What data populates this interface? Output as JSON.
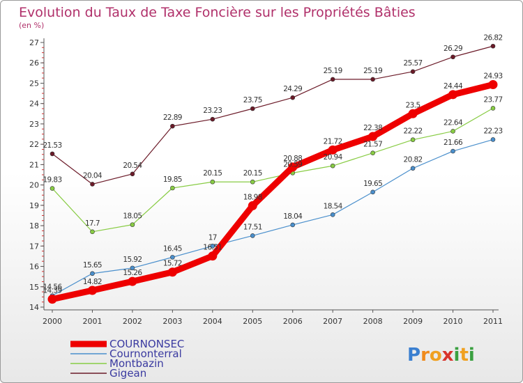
{
  "chart_data": {
    "type": "line",
    "title": "Evolution du Taux de Taxe Foncière sur les Propriétés Bâties",
    "subtitle": "(en %)",
    "x": [
      "2000",
      "2001",
      "2002",
      "2003",
      "2004",
      "2005",
      "2006",
      "2007",
      "2008",
      "2009",
      "2010",
      "2011"
    ],
    "yticks": [
      "14",
      "15",
      "16",
      "17",
      "18",
      "19",
      "20",
      "21",
      "22",
      "23",
      "24",
      "25",
      "26",
      "27"
    ],
    "ylim": [
      14,
      27
    ],
    "grid": false,
    "legend_position": "bottom-left",
    "series": [
      {
        "name": "Gigean",
        "color": "#6b1a28",
        "values": [
          21.53,
          20.04,
          20.54,
          22.89,
          23.23,
          23.75,
          24.29,
          25.19,
          25.19,
          25.57,
          26.29,
          26.82
        ],
        "labels": [
          "21.53",
          "20.04",
          "20.54",
          "22.89",
          "23.23",
          "23.75",
          "24.29",
          "25.19",
          "25.19",
          "25.57",
          "26.29",
          "26.82"
        ]
      },
      {
        "name": "Montbazin",
        "color": "#88cc44",
        "values": [
          19.83,
          17.7,
          18.05,
          19.85,
          20.15,
          20.15,
          20.59,
          20.94,
          21.57,
          22.22,
          22.64,
          23.77
        ],
        "labels": [
          "19.83",
          "17.7",
          "18.05",
          "19.85",
          "20.15",
          "20.15",
          "20.59",
          "20.94",
          "21.57",
          "22.22",
          "22.64",
          "23.77"
        ]
      },
      {
        "name": "Cournonterral",
        "color": "#4a8fcc",
        "values": [
          14.56,
          15.65,
          15.92,
          16.45,
          17.0,
          17.51,
          18.04,
          18.54,
          19.65,
          20.82,
          21.66,
          22.23
        ],
        "labels": [
          "14.56",
          "15.65",
          "15.92",
          "16.45",
          "17",
          "17.51",
          "18.04",
          "18.54",
          "19.65",
          "20.82",
          "21.66",
          "22.23"
        ]
      },
      {
        "name": "COURNONSEC",
        "color": "#ee0000",
        "values": [
          14.39,
          14.82,
          15.26,
          15.72,
          16.51,
          18.98,
          20.88,
          21.72,
          22.38,
          23.5,
          24.44,
          24.93
        ],
        "labels": [
          "14.39",
          "14.82",
          "15.26",
          "15.72",
          "16.51",
          "18.98",
          "20.88",
          "21.72",
          "22.38",
          "23.5",
          "24.44",
          "24.93"
        ]
      }
    ],
    "legend": [
      {
        "name": "COURNONSEC",
        "color": "#ee0000"
      },
      {
        "name": "Cournonterral",
        "color": "#4a8fcc"
      },
      {
        "name": "Montbazin",
        "color": "#88cc44"
      },
      {
        "name": "Gigean",
        "color": "#6b1a28"
      }
    ]
  },
  "brand": {
    "letters": [
      "P",
      "r",
      "o",
      "x",
      "i",
      "t",
      "i"
    ],
    "colors": [
      "#3a7fd0",
      "#f08a1c",
      "#f0a020",
      "#d8342c",
      "#3aa040",
      "#f0a020",
      "#3aa040"
    ]
  }
}
